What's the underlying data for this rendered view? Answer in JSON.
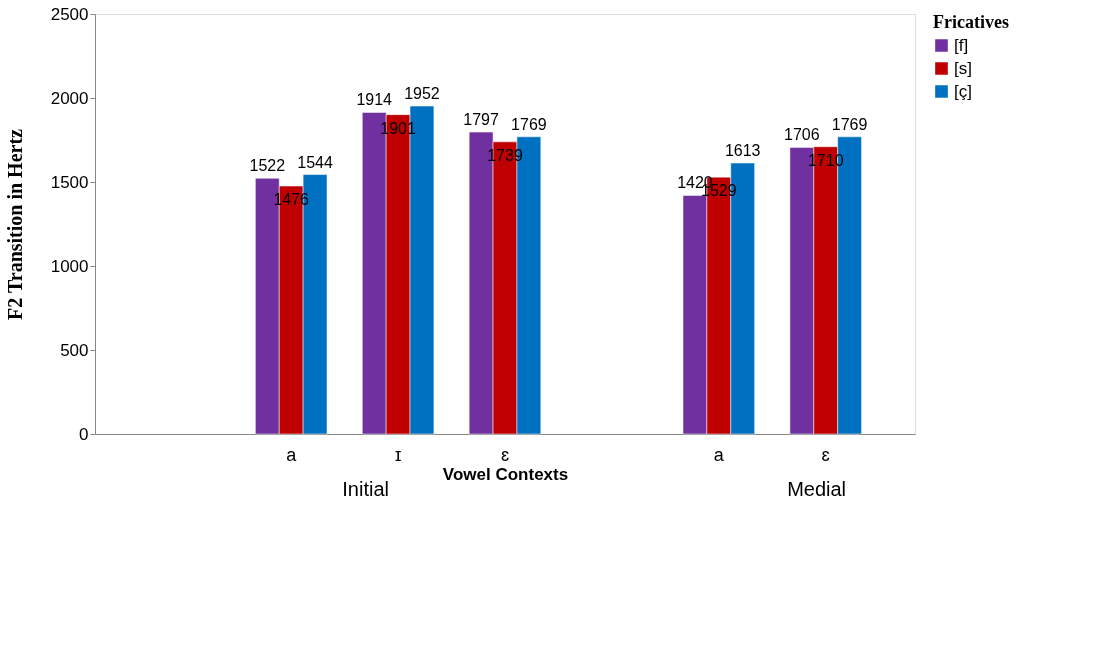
{
  "chart_data": {
    "type": "bar",
    "xlabel": "Vowel Contexts",
    "ylabel": "F2 Transition in Hertz",
    "legend_title": "Fricatives",
    "categories": [
      null,
      "a",
      "ɪ",
      "ɛ",
      null,
      "a",
      "ɛ"
    ],
    "series": [
      {
        "name": "[f]",
        "color": "#7030a0",
        "values": [
          null,
          1522,
          1914,
          1797,
          null,
          1420,
          1706
        ]
      },
      {
        "name": "[s]",
        "color": "#c00000",
        "values": [
          null,
          1476,
          1901,
          1739,
          null,
          1529,
          1710
        ]
      },
      {
        "name": "[ç]",
        "color": "#0070c0",
        "values": [
          null,
          1544,
          1952,
          1769,
          null,
          1613,
          1769
        ]
      }
    ],
    "ylim": [
      0,
      2500
    ],
    "yticks": [
      0,
      500,
      1000,
      1500,
      2000,
      2500
    ],
    "grid": false,
    "legend": "right",
    "data_labels": true,
    "annotations": [
      "Initial",
      "Medial"
    ]
  }
}
